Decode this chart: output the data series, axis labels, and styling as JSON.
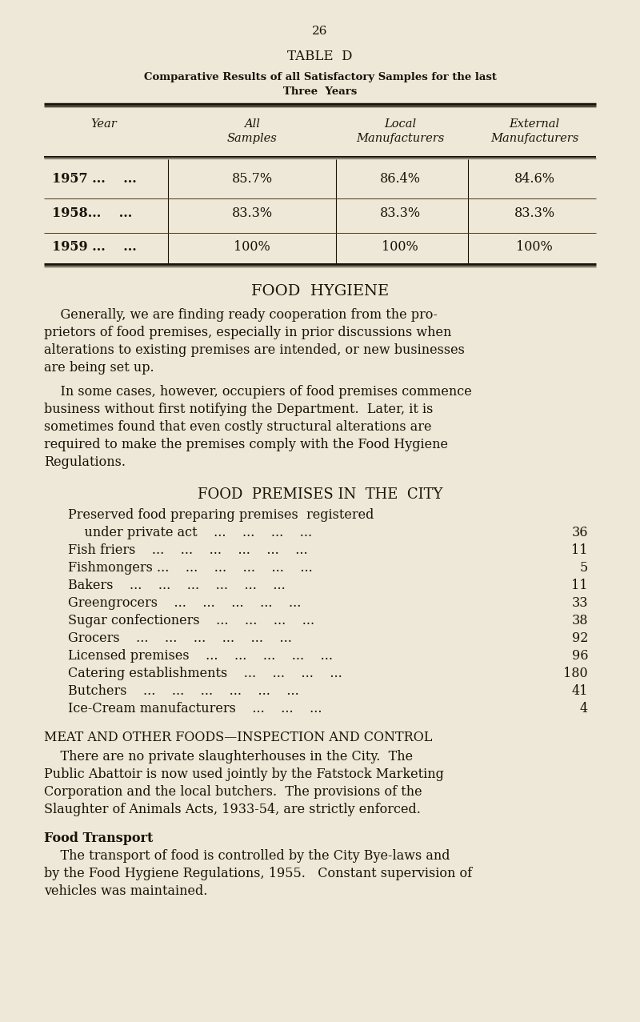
{
  "bg_color": "#ede8d8",
  "text_color": "#1a1208",
  "page_number": "26",
  "table_title": "TABLE  D",
  "table_subtitle_line1": "Comparative Results of all Satisfactory Samples for the last",
  "table_subtitle_line2": "Three  Years",
  "table_header_year": "Year",
  "table_header_all": "All",
  "table_header_samples": "Samples",
  "table_header_local": "Local",
  "table_header_local2": "Manufacturers",
  "table_header_ext": "External",
  "table_header_ext2": "Manufacturers",
  "table_rows": [
    [
      "1957 ...    ...",
      "85.7%",
      "86.4%",
      "84.6%"
    ],
    [
      "1958...    ...",
      "83.3%",
      "83.3%",
      "83.3%"
    ],
    [
      "1959 ...    ...",
      "100%",
      "100%",
      "100%"
    ]
  ],
  "section1_title": "FOOD  HYGIENE",
  "section1_para1_line1": "    Generally, we are finding ready cooperation from the pro-",
  "section1_para1_line2": "prietors of food premises, especially in prior discussions when",
  "section1_para1_line3": "alterations to existing premises are intended, or new businesses",
  "section1_para1_line4": "are being set up.",
  "section1_para2_line1": "    In some cases, however, occupiers of food premises commence",
  "section1_para2_line2": "business without first notifying the Department.  Later, it is",
  "section1_para2_line3": "sometimes found that even costly structural alterations are",
  "section1_para2_line4": "required to make the premises comply with the Food Hygiene",
  "section1_para2_line5": "Regulations.",
  "section2_title": "FOOD  PREMISES IN  THE  CITY",
  "food_premises_line1a": "Preserved food preparing premises  registered",
  "food_premises_line1b": "    under private act    ...    ...    ...    ...",
  "food_premises_line1_num": "36",
  "food_premises": [
    [
      "Fish friers    ...    ...    ...    ...    ...    ...",
      "11"
    ],
    [
      "Fishmongers ...    ...    ...    ...    ...    ...",
      "5"
    ],
    [
      "Bakers    ...    ...    ...    ...    ...    ...",
      "11"
    ],
    [
      "Greengrocers    ...    ...    ...    ...    ...",
      "33"
    ],
    [
      "Sugar confectioners    ...    ...    ...    ...",
      "38"
    ],
    [
      "Grocers    ...    ...    ...    ...    ...    ...",
      "92"
    ],
    [
      "Licensed premises    ...    ...    ...    ...    ...",
      "96"
    ],
    [
      "Catering establishments    ...    ...    ...    ...",
      "180"
    ],
    [
      "Butchers    ...    ...    ...    ...    ...    ...",
      "41"
    ],
    [
      "Ice-Cream manufacturers    ...    ...    ...",
      "4"
    ]
  ],
  "section3_title": "MEAT AND OTHER FOODS—INSPECTION AND CONTROL",
  "section3_para_line1": "    There are no private slaughterhouses in the City.  The",
  "section3_para_line2": "Public Abattoir is now used jointly by the Fatstock Marketing",
  "section3_para_line3": "Corporation and the local butchers.  The provisions of the",
  "section3_para_line4": "Slaughter of Animals Acts, 1933-54, are strictly enforced.",
  "section4_title": "Food Transport",
  "section4_para_line1": "    The transport of food is controlled by the City Bye-laws and",
  "section4_para_line2": "by the Food Hygiene Regulations, 1955.   Constant supervision of",
  "section4_para_line3": "vehicles was maintained."
}
